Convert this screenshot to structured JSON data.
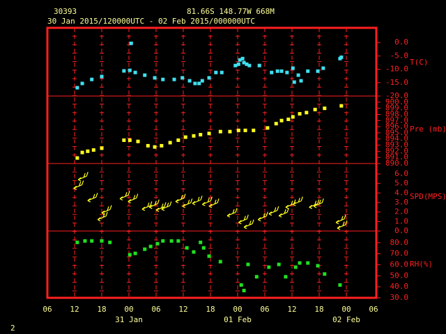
{
  "header": {
    "station": "30393",
    "location": "81.66S   148.77W   668M",
    "period": "30 Jan 2015/120000UTC - 02 Feb 2015/000000UTC",
    "page": "2"
  },
  "x_axis": {
    "xlim": [
      0,
      72
    ],
    "xticks": [
      {
        "value": 0,
        "label": "06"
      },
      {
        "value": 6,
        "label": "12"
      },
      {
        "value": 12,
        "label": "18"
      },
      {
        "value": 18,
        "label": "00"
      },
      {
        "value": 24,
        "label": "06"
      },
      {
        "value": 30,
        "label": "12"
      },
      {
        "value": 36,
        "label": "18"
      },
      {
        "value": 42,
        "label": "00"
      },
      {
        "value": 48,
        "label": "06"
      },
      {
        "value": 54,
        "label": "12"
      },
      {
        "value": 60,
        "label": "18"
      },
      {
        "value": 66,
        "label": "00"
      },
      {
        "value": 72,
        "label": "06"
      }
    ],
    "date_labels": [
      {
        "value": 18,
        "label": "31 Jan"
      },
      {
        "value": 42,
        "label": "01 Feb"
      },
      {
        "value": 66,
        "label": "02 Feb"
      }
    ]
  },
  "chart_data": [
    {
      "type": "scatter",
      "label": "T(C)",
      "color": "#40e0f0",
      "ylim": [
        -20,
        5.5
      ],
      "yticks": [
        {
          "value": 0,
          "label": "0.0"
        },
        {
          "value": -5,
          "label": "-5.0"
        },
        {
          "value": -10,
          "label": "-10.0"
        },
        {
          "value": -15,
          "label": "-15.0"
        },
        {
          "value": -20,
          "label": "-20.0"
        }
      ],
      "x": [
        6.6,
        7.7,
        9.8,
        12,
        16.9,
        18.2,
        18.5,
        19.4,
        21.5,
        23.7,
        25.5,
        28,
        29.8,
        31.4,
        32.6,
        33.5,
        34.2,
        35.7,
        37.2,
        38.5,
        41.5,
        42.2,
        42.5,
        43.1,
        43.4,
        44,
        44.6,
        46.8,
        49.5,
        50.8,
        51.7,
        52.9,
        54.2,
        54.5,
        55.4,
        56,
        57.5,
        59.7,
        60.9,
        64.6,
        64.9
      ],
      "values": [
        -16.9,
        -15.3,
        -13.8,
        -12.7,
        -10.6,
        -10.4,
        -0.3,
        -11.2,
        -12.2,
        -13.2,
        -13.8,
        -13.8,
        -13.2,
        -14.3,
        -15.3,
        -15.3,
        -14.3,
        -13.2,
        -11.2,
        -11.2,
        -8.6,
        -8.1,
        -6.5,
        -6.0,
        -7.5,
        -8.1,
        -8.6,
        -8.6,
        -11.2,
        -10.7,
        -10.7,
        -11.2,
        -9.6,
        -14.8,
        -12.2,
        -14.3,
        -10.7,
        -10.7,
        -9.6,
        -6.0,
        -5.5
      ]
    },
    {
      "type": "scatter",
      "label": "Pre (mb)",
      "color": "#ffff20",
      "ylim": [
        890,
        901
      ],
      "yticks": [
        {
          "value": 900,
          "label": "900.0"
        },
        {
          "value": 899,
          "label": "899.0"
        },
        {
          "value": 898,
          "label": "898.0"
        },
        {
          "value": 897,
          "label": "897.0"
        },
        {
          "value": 896,
          "label": "896.0"
        },
        {
          "value": 895,
          "label": "895.0"
        },
        {
          "value": 894,
          "label": "894.0"
        },
        {
          "value": 893,
          "label": "893.0"
        },
        {
          "value": 892,
          "label": "892.0"
        },
        {
          "value": 891,
          "label": "891.0"
        },
        {
          "value": 890,
          "label": "890.0"
        }
      ],
      "x": [
        6.6,
        7.7,
        8.9,
        10.2,
        12,
        16.9,
        18.2,
        20,
        22.2,
        23.7,
        25.2,
        27.1,
        28.9,
        30.5,
        32.3,
        33.8,
        35.7,
        38.2,
        40.3,
        42.2,
        43.7,
        45.5,
        48.6,
        50.5,
        51.7,
        53.2,
        54.2,
        55.7,
        57.2,
        59.1,
        61.2,
        64.9
      ],
      "values": [
        890.9,
        891.8,
        892.0,
        892.2,
        892.5,
        893.8,
        893.8,
        893.6,
        892.9,
        892.7,
        892.9,
        893.4,
        893.8,
        894.3,
        894.5,
        894.7,
        894.9,
        895.2,
        895.2,
        895.4,
        895.4,
        895.4,
        895.8,
        896.5,
        897.0,
        897.2,
        897.6,
        898.1,
        898.3,
        898.8,
        899.0,
        899.4
      ]
    },
    {
      "type": "barb",
      "label": "SPD(MPS)",
      "color": "#ffff20",
      "ylim": [
        0,
        7.1
      ],
      "yticks": [
        {
          "value": 6,
          "label": "6.0"
        },
        {
          "value": 5,
          "label": "5.0"
        },
        {
          "value": 4,
          "label": "4.0"
        },
        {
          "value": 3,
          "label": "3.0"
        },
        {
          "value": 2,
          "label": "2.0"
        },
        {
          "value": 1,
          "label": "1.0"
        },
        {
          "value": 0,
          "label": "0.0"
        }
      ],
      "x": [
        5.8,
        6.8,
        8.9,
        11.1,
        12,
        16,
        17.8,
        20.9,
        22.5,
        24,
        25.2,
        28.3,
        29.8,
        32,
        34.2,
        35.7,
        39.7,
        42.2,
        43.4,
        46.5,
        48.9,
        51.1,
        52.6,
        54.2,
        57.8,
        58.8,
        63.7,
        64
      ],
      "values": [
        4.5,
        5.4,
        3.2,
        1.2,
        1.9,
        3.4,
        3.1,
        2.3,
        2.5,
        2.2,
        2.3,
        3.1,
        2.6,
        2.9,
        2.8,
        2.6,
        1.6,
        0.9,
        0.4,
        1.2,
        1.8,
        1.6,
        2.5,
        2.8,
        2.5,
        2.6,
        0.9,
        0.3
      ]
    },
    {
      "type": "scatter",
      "label": "RH(%)",
      "color": "#20e020",
      "ylim": [
        30,
        90.6
      ],
      "yticks": [
        {
          "value": 80,
          "label": "80.0"
        },
        {
          "value": 70,
          "label": "70.0"
        },
        {
          "value": 60,
          "label": "60.0"
        },
        {
          "value": 50,
          "label": "50.0"
        },
        {
          "value": 40,
          "label": "40.0"
        },
        {
          "value": 30,
          "label": "30.0"
        }
      ],
      "x": [
        6.6,
        8.3,
        9.8,
        12,
        13.8,
        18.2,
        19.4,
        21.5,
        22.8,
        24.3,
        25.5,
        27.4,
        28.9,
        30.8,
        32.3,
        33.8,
        34.5,
        35.7,
        38.2,
        42.8,
        43.4,
        44.3,
        46.2,
        48.9,
        51.1,
        52.6,
        54.8,
        55.7,
        57.5,
        59.7,
        61.2,
        64.6
      ],
      "values": [
        80.3,
        81.6,
        81.6,
        81.6,
        80.3,
        69.1,
        70.3,
        74.1,
        76.6,
        79.1,
        81.6,
        81.6,
        81.6,
        75.3,
        71.6,
        80.3,
        75.3,
        67.8,
        62.8,
        41.6,
        36.6,
        60.3,
        49.1,
        57.8,
        60.3,
        49.1,
        57.8,
        61.6,
        61.6,
        59.1,
        51.6,
        41.6
      ]
    }
  ]
}
